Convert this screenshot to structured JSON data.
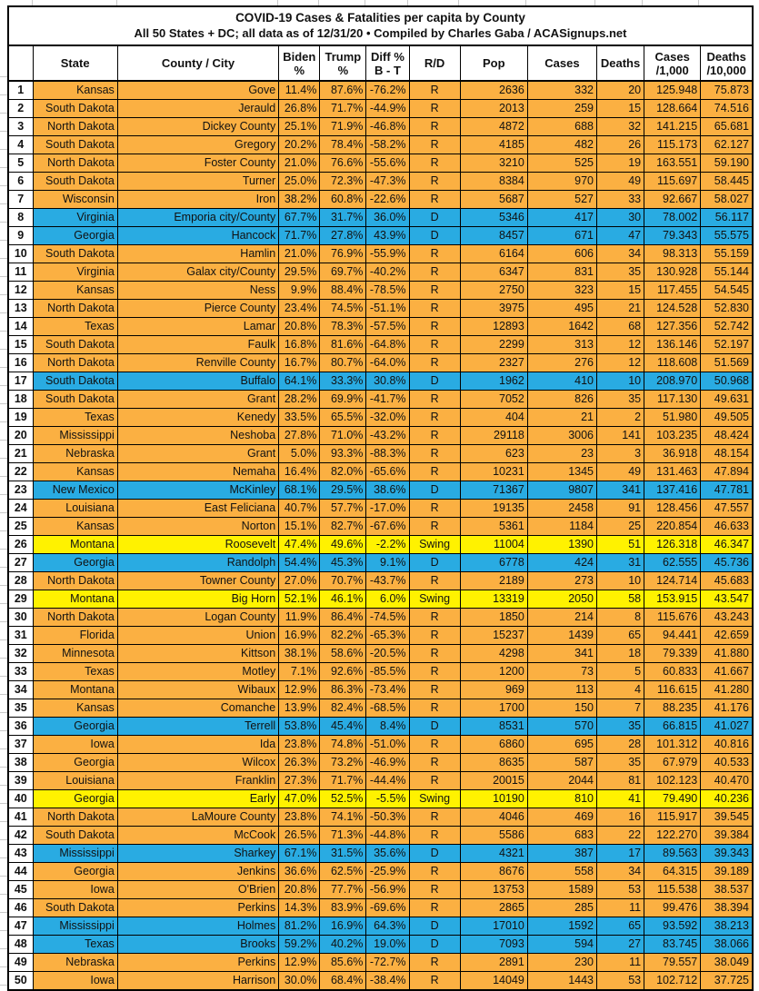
{
  "title": "COVID-19 Cases & Fatalities per capita by County",
  "subtitle": "All 50 States + DC; all data as of 12/31/20  • Compiled by Charles Gaba / ACASignups.net",
  "colors": {
    "republican_row": "#FBB042",
    "democrat_row": "#29ABE2",
    "swing_row": "#FFF200",
    "grid_border": "#000000",
    "text": "#111111"
  },
  "table": {
    "columns": [
      {
        "key": "n",
        "label": ""
      },
      {
        "key": "state",
        "label": "State"
      },
      {
        "key": "county",
        "label": "County / City"
      },
      {
        "key": "biden",
        "label": "Biden\n%"
      },
      {
        "key": "trump",
        "label": "Trump\n%"
      },
      {
        "key": "diff",
        "label": "Diff %\nB - T"
      },
      {
        "key": "rd",
        "label": "R/D"
      },
      {
        "key": "pop",
        "label": "Pop"
      },
      {
        "key": "cases",
        "label": "Cases"
      },
      {
        "key": "deaths",
        "label": "Deaths"
      },
      {
        "key": "cases_per_1000",
        "label": "Cases\n/1,000"
      },
      {
        "key": "deaths_per_10000",
        "label": "Deaths\n/10,000"
      }
    ],
    "rows": [
      {
        "n": "1",
        "state": "Kansas",
        "county": "Gove",
        "biden": "11.4%",
        "trump": "87.6%",
        "diff": "-76.2%",
        "rd": "R",
        "pop": "2636",
        "cases": "332",
        "deaths": "20",
        "cases_per_1000": "125.948",
        "deaths_per_10000": "75.873",
        "party": "R"
      },
      {
        "n": "2",
        "state": "South Dakota",
        "county": "Jerauld",
        "biden": "26.8%",
        "trump": "71.7%",
        "diff": "-44.9%",
        "rd": "R",
        "pop": "2013",
        "cases": "259",
        "deaths": "15",
        "cases_per_1000": "128.664",
        "deaths_per_10000": "74.516",
        "party": "R"
      },
      {
        "n": "3",
        "state": "North Dakota",
        "county": "Dickey County",
        "biden": "25.1%",
        "trump": "71.9%",
        "diff": "-46.8%",
        "rd": "R",
        "pop": "4872",
        "cases": "688",
        "deaths": "32",
        "cases_per_1000": "141.215",
        "deaths_per_10000": "65.681",
        "party": "R"
      },
      {
        "n": "4",
        "state": "South Dakota",
        "county": "Gregory",
        "biden": "20.2%",
        "trump": "78.4%",
        "diff": "-58.2%",
        "rd": "R",
        "pop": "4185",
        "cases": "482",
        "deaths": "26",
        "cases_per_1000": "115.173",
        "deaths_per_10000": "62.127",
        "party": "R"
      },
      {
        "n": "5",
        "state": "North Dakota",
        "county": "Foster County",
        "biden": "21.0%",
        "trump": "76.6%",
        "diff": "-55.6%",
        "rd": "R",
        "pop": "3210",
        "cases": "525",
        "deaths": "19",
        "cases_per_1000": "163.551",
        "deaths_per_10000": "59.190",
        "party": "R"
      },
      {
        "n": "6",
        "state": "South Dakota",
        "county": "Turner",
        "biden": "25.0%",
        "trump": "72.3%",
        "diff": "-47.3%",
        "rd": "R",
        "pop": "8384",
        "cases": "970",
        "deaths": "49",
        "cases_per_1000": "115.697",
        "deaths_per_10000": "58.445",
        "party": "R"
      },
      {
        "n": "7",
        "state": "Wisconsin",
        "county": "Iron",
        "biden": "38.2%",
        "trump": "60.8%",
        "diff": "-22.6%",
        "rd": "R",
        "pop": "5687",
        "cases": "527",
        "deaths": "33",
        "cases_per_1000": "92.667",
        "deaths_per_10000": "58.027",
        "party": "R"
      },
      {
        "n": "8",
        "state": "Virginia",
        "county": "Emporia city/County",
        "biden": "67.7%",
        "trump": "31.7%",
        "diff": "36.0%",
        "rd": "D",
        "pop": "5346",
        "cases": "417",
        "deaths": "30",
        "cases_per_1000": "78.002",
        "deaths_per_10000": "56.117",
        "party": "D"
      },
      {
        "n": "9",
        "state": "Georgia",
        "county": "Hancock",
        "biden": "71.7%",
        "trump": "27.8%",
        "diff": "43.9%",
        "rd": "D",
        "pop": "8457",
        "cases": "671",
        "deaths": "47",
        "cases_per_1000": "79.343",
        "deaths_per_10000": "55.575",
        "party": "D"
      },
      {
        "n": "10",
        "state": "South Dakota",
        "county": "Hamlin",
        "biden": "21.0%",
        "trump": "76.9%",
        "diff": "-55.9%",
        "rd": "R",
        "pop": "6164",
        "cases": "606",
        "deaths": "34",
        "cases_per_1000": "98.313",
        "deaths_per_10000": "55.159",
        "party": "R"
      },
      {
        "n": "11",
        "state": "Virginia",
        "county": "Galax city/County",
        "biden": "29.5%",
        "trump": "69.7%",
        "diff": "-40.2%",
        "rd": "R",
        "pop": "6347",
        "cases": "831",
        "deaths": "35",
        "cases_per_1000": "130.928",
        "deaths_per_10000": "55.144",
        "party": "R"
      },
      {
        "n": "12",
        "state": "Kansas",
        "county": "Ness",
        "biden": "9.9%",
        "trump": "88.4%",
        "diff": "-78.5%",
        "rd": "R",
        "pop": "2750",
        "cases": "323",
        "deaths": "15",
        "cases_per_1000": "117.455",
        "deaths_per_10000": "54.545",
        "party": "R"
      },
      {
        "n": "13",
        "state": "North Dakota",
        "county": "Pierce County",
        "biden": "23.4%",
        "trump": "74.5%",
        "diff": "-51.1%",
        "rd": "R",
        "pop": "3975",
        "cases": "495",
        "deaths": "21",
        "cases_per_1000": "124.528",
        "deaths_per_10000": "52.830",
        "party": "R"
      },
      {
        "n": "14",
        "state": "Texas",
        "county": "Lamar",
        "biden": "20.8%",
        "trump": "78.3%",
        "diff": "-57.5%",
        "rd": "R",
        "pop": "12893",
        "cases": "1642",
        "deaths": "68",
        "cases_per_1000": "127.356",
        "deaths_per_10000": "52.742",
        "party": "R"
      },
      {
        "n": "15",
        "state": "South Dakota",
        "county": "Faulk",
        "biden": "16.8%",
        "trump": "81.6%",
        "diff": "-64.8%",
        "rd": "R",
        "pop": "2299",
        "cases": "313",
        "deaths": "12",
        "cases_per_1000": "136.146",
        "deaths_per_10000": "52.197",
        "party": "R"
      },
      {
        "n": "16",
        "state": "North Dakota",
        "county": "Renville County",
        "biden": "16.7%",
        "trump": "80.7%",
        "diff": "-64.0%",
        "rd": "R",
        "pop": "2327",
        "cases": "276",
        "deaths": "12",
        "cases_per_1000": "118.608",
        "deaths_per_10000": "51.569",
        "party": "R"
      },
      {
        "n": "17",
        "state": "South Dakota",
        "county": "Buffalo",
        "biden": "64.1%",
        "trump": "33.3%",
        "diff": "30.8%",
        "rd": "D",
        "pop": "1962",
        "cases": "410",
        "deaths": "10",
        "cases_per_1000": "208.970",
        "deaths_per_10000": "50.968",
        "party": "D"
      },
      {
        "n": "18",
        "state": "South Dakota",
        "county": "Grant",
        "biden": "28.2%",
        "trump": "69.9%",
        "diff": "-41.7%",
        "rd": "R",
        "pop": "7052",
        "cases": "826",
        "deaths": "35",
        "cases_per_1000": "117.130",
        "deaths_per_10000": "49.631",
        "party": "R"
      },
      {
        "n": "19",
        "state": "Texas",
        "county": "Kenedy",
        "biden": "33.5%",
        "trump": "65.5%",
        "diff": "-32.0%",
        "rd": "R",
        "pop": "404",
        "cases": "21",
        "deaths": "2",
        "cases_per_1000": "51.980",
        "deaths_per_10000": "49.505",
        "party": "R"
      },
      {
        "n": "20",
        "state": "Mississippi",
        "county": "Neshoba",
        "biden": "27.8%",
        "trump": "71.0%",
        "diff": "-43.2%",
        "rd": "R",
        "pop": "29118",
        "cases": "3006",
        "deaths": "141",
        "cases_per_1000": "103.235",
        "deaths_per_10000": "48.424",
        "party": "R"
      },
      {
        "n": "21",
        "state": "Nebraska",
        "county": "Grant",
        "biden": "5.0%",
        "trump": "93.3%",
        "diff": "-88.3%",
        "rd": "R",
        "pop": "623",
        "cases": "23",
        "deaths": "3",
        "cases_per_1000": "36.918",
        "deaths_per_10000": "48.154",
        "party": "R"
      },
      {
        "n": "22",
        "state": "Kansas",
        "county": "Nemaha",
        "biden": "16.4%",
        "trump": "82.0%",
        "diff": "-65.6%",
        "rd": "R",
        "pop": "10231",
        "cases": "1345",
        "deaths": "49",
        "cases_per_1000": "131.463",
        "deaths_per_10000": "47.894",
        "party": "R"
      },
      {
        "n": "23",
        "state": "New Mexico",
        "county": "McKinley",
        "biden": "68.1%",
        "trump": "29.5%",
        "diff": "38.6%",
        "rd": "D",
        "pop": "71367",
        "cases": "9807",
        "deaths": "341",
        "cases_per_1000": "137.416",
        "deaths_per_10000": "47.781",
        "party": "D"
      },
      {
        "n": "24",
        "state": "Louisiana",
        "county": "East Feliciana",
        "biden": "40.7%",
        "trump": "57.7%",
        "diff": "-17.0%",
        "rd": "R",
        "pop": "19135",
        "cases": "2458",
        "deaths": "91",
        "cases_per_1000": "128.456",
        "deaths_per_10000": "47.557",
        "party": "R"
      },
      {
        "n": "25",
        "state": "Kansas",
        "county": "Norton",
        "biden": "15.1%",
        "trump": "82.7%",
        "diff": "-67.6%",
        "rd": "R",
        "pop": "5361",
        "cases": "1184",
        "deaths": "25",
        "cases_per_1000": "220.854",
        "deaths_per_10000": "46.633",
        "party": "R"
      },
      {
        "n": "26",
        "state": "Montana",
        "county": "Roosevelt",
        "biden": "47.4%",
        "trump": "49.6%",
        "diff": "-2.2%",
        "rd": "Swing",
        "pop": "11004",
        "cases": "1390",
        "deaths": "51",
        "cases_per_1000": "126.318",
        "deaths_per_10000": "46.347",
        "party": "Swing"
      },
      {
        "n": "27",
        "state": "Georgia",
        "county": "Randolph",
        "biden": "54.4%",
        "trump": "45.3%",
        "diff": "9.1%",
        "rd": "D",
        "pop": "6778",
        "cases": "424",
        "deaths": "31",
        "cases_per_1000": "62.555",
        "deaths_per_10000": "45.736",
        "party": "D"
      },
      {
        "n": "28",
        "state": "North Dakota",
        "county": "Towner County",
        "biden": "27.0%",
        "trump": "70.7%",
        "diff": "-43.7%",
        "rd": "R",
        "pop": "2189",
        "cases": "273",
        "deaths": "10",
        "cases_per_1000": "124.714",
        "deaths_per_10000": "45.683",
        "party": "R"
      },
      {
        "n": "29",
        "state": "Montana",
        "county": "Big Horn",
        "biden": "52.1%",
        "trump": "46.1%",
        "diff": "6.0%",
        "rd": "Swing",
        "pop": "13319",
        "cases": "2050",
        "deaths": "58",
        "cases_per_1000": "153.915",
        "deaths_per_10000": "43.547",
        "party": "Swing"
      },
      {
        "n": "30",
        "state": "North Dakota",
        "county": "Logan County",
        "biden": "11.9%",
        "trump": "86.4%",
        "diff": "-74.5%",
        "rd": "R",
        "pop": "1850",
        "cases": "214",
        "deaths": "8",
        "cases_per_1000": "115.676",
        "deaths_per_10000": "43.243",
        "party": "R"
      },
      {
        "n": "31",
        "state": "Florida",
        "county": "Union",
        "biden": "16.9%",
        "trump": "82.2%",
        "diff": "-65.3%",
        "rd": "R",
        "pop": "15237",
        "cases": "1439",
        "deaths": "65",
        "cases_per_1000": "94.441",
        "deaths_per_10000": "42.659",
        "party": "R"
      },
      {
        "n": "32",
        "state": "Minnesota",
        "county": "Kittson",
        "biden": "38.1%",
        "trump": "58.6%",
        "diff": "-20.5%",
        "rd": "R",
        "pop": "4298",
        "cases": "341",
        "deaths": "18",
        "cases_per_1000": "79.339",
        "deaths_per_10000": "41.880",
        "party": "R"
      },
      {
        "n": "33",
        "state": "Texas",
        "county": "Motley",
        "biden": "7.1%",
        "trump": "92.6%",
        "diff": "-85.5%",
        "rd": "R",
        "pop": "1200",
        "cases": "73",
        "deaths": "5",
        "cases_per_1000": "60.833",
        "deaths_per_10000": "41.667",
        "party": "R"
      },
      {
        "n": "34",
        "state": "Montana",
        "county": "Wibaux",
        "biden": "12.9%",
        "trump": "86.3%",
        "diff": "-73.4%",
        "rd": "R",
        "pop": "969",
        "cases": "113",
        "deaths": "4",
        "cases_per_1000": "116.615",
        "deaths_per_10000": "41.280",
        "party": "R"
      },
      {
        "n": "35",
        "state": "Kansas",
        "county": "Comanche",
        "biden": "13.9%",
        "trump": "82.4%",
        "diff": "-68.5%",
        "rd": "R",
        "pop": "1700",
        "cases": "150",
        "deaths": "7",
        "cases_per_1000": "88.235",
        "deaths_per_10000": "41.176",
        "party": "R"
      },
      {
        "n": "36",
        "state": "Georgia",
        "county": "Terrell",
        "biden": "53.8%",
        "trump": "45.4%",
        "diff": "8.4%",
        "rd": "D",
        "pop": "8531",
        "cases": "570",
        "deaths": "35",
        "cases_per_1000": "66.815",
        "deaths_per_10000": "41.027",
        "party": "D"
      },
      {
        "n": "37",
        "state": "Iowa",
        "county": "Ida",
        "biden": "23.8%",
        "trump": "74.8%",
        "diff": "-51.0%",
        "rd": "R",
        "pop": "6860",
        "cases": "695",
        "deaths": "28",
        "cases_per_1000": "101.312",
        "deaths_per_10000": "40.816",
        "party": "R"
      },
      {
        "n": "38",
        "state": "Georgia",
        "county": "Wilcox",
        "biden": "26.3%",
        "trump": "73.2%",
        "diff": "-46.9%",
        "rd": "R",
        "pop": "8635",
        "cases": "587",
        "deaths": "35",
        "cases_per_1000": "67.979",
        "deaths_per_10000": "40.533",
        "party": "R"
      },
      {
        "n": "39",
        "state": "Louisiana",
        "county": "Franklin",
        "biden": "27.3%",
        "trump": "71.7%",
        "diff": "-44.4%",
        "rd": "R",
        "pop": "20015",
        "cases": "2044",
        "deaths": "81",
        "cases_per_1000": "102.123",
        "deaths_per_10000": "40.470",
        "party": "R"
      },
      {
        "n": "40",
        "state": "Georgia",
        "county": "Early",
        "biden": "47.0%",
        "trump": "52.5%",
        "diff": "-5.5%",
        "rd": "Swing",
        "pop": "10190",
        "cases": "810",
        "deaths": "41",
        "cases_per_1000": "79.490",
        "deaths_per_10000": "40.236",
        "party": "Swing"
      },
      {
        "n": "41",
        "state": "North Dakota",
        "county": "LaMoure County",
        "biden": "23.8%",
        "trump": "74.1%",
        "diff": "-50.3%",
        "rd": "R",
        "pop": "4046",
        "cases": "469",
        "deaths": "16",
        "cases_per_1000": "115.917",
        "deaths_per_10000": "39.545",
        "party": "R"
      },
      {
        "n": "42",
        "state": "South Dakota",
        "county": "McCook",
        "biden": "26.5%",
        "trump": "71.3%",
        "diff": "-44.8%",
        "rd": "R",
        "pop": "5586",
        "cases": "683",
        "deaths": "22",
        "cases_per_1000": "122.270",
        "deaths_per_10000": "39.384",
        "party": "R"
      },
      {
        "n": "43",
        "state": "Mississippi",
        "county": "Sharkey",
        "biden": "67.1%",
        "trump": "31.5%",
        "diff": "35.6%",
        "rd": "D",
        "pop": "4321",
        "cases": "387",
        "deaths": "17",
        "cases_per_1000": "89.563",
        "deaths_per_10000": "39.343",
        "party": "D"
      },
      {
        "n": "44",
        "state": "Georgia",
        "county": "Jenkins",
        "biden": "36.6%",
        "trump": "62.5%",
        "diff": "-25.9%",
        "rd": "R",
        "pop": "8676",
        "cases": "558",
        "deaths": "34",
        "cases_per_1000": "64.315",
        "deaths_per_10000": "39.189",
        "party": "R"
      },
      {
        "n": "45",
        "state": "Iowa",
        "county": "O'Brien",
        "biden": "20.8%",
        "trump": "77.7%",
        "diff": "-56.9%",
        "rd": "R",
        "pop": "13753",
        "cases": "1589",
        "deaths": "53",
        "cases_per_1000": "115.538",
        "deaths_per_10000": "38.537",
        "party": "R"
      },
      {
        "n": "46",
        "state": "South Dakota",
        "county": "Perkins",
        "biden": "14.3%",
        "trump": "83.9%",
        "diff": "-69.6%",
        "rd": "R",
        "pop": "2865",
        "cases": "285",
        "deaths": "11",
        "cases_per_1000": "99.476",
        "deaths_per_10000": "38.394",
        "party": "R"
      },
      {
        "n": "47",
        "state": "Mississippi",
        "county": "Holmes",
        "biden": "81.2%",
        "trump": "16.9%",
        "diff": "64.3%",
        "rd": "D",
        "pop": "17010",
        "cases": "1592",
        "deaths": "65",
        "cases_per_1000": "93.592",
        "deaths_per_10000": "38.213",
        "party": "D"
      },
      {
        "n": "48",
        "state": "Texas",
        "county": "Brooks",
        "biden": "59.2%",
        "trump": "40.2%",
        "diff": "19.0%",
        "rd": "D",
        "pop": "7093",
        "cases": "594",
        "deaths": "27",
        "cases_per_1000": "83.745",
        "deaths_per_10000": "38.066",
        "party": "D"
      },
      {
        "n": "49",
        "state": "Nebraska",
        "county": "Perkins",
        "biden": "12.9%",
        "trump": "85.6%",
        "diff": "-72.7%",
        "rd": "R",
        "pop": "2891",
        "cases": "230",
        "deaths": "11",
        "cases_per_1000": "79.557",
        "deaths_per_10000": "38.049",
        "party": "R"
      },
      {
        "n": "50",
        "state": "Iowa",
        "county": "Harrison",
        "biden": "30.0%",
        "trump": "68.4%",
        "diff": "-38.4%",
        "rd": "R",
        "pop": "14049",
        "cases": "1443",
        "deaths": "53",
        "cases_per_1000": "102.712",
        "deaths_per_10000": "37.725",
        "party": "R"
      }
    ]
  }
}
